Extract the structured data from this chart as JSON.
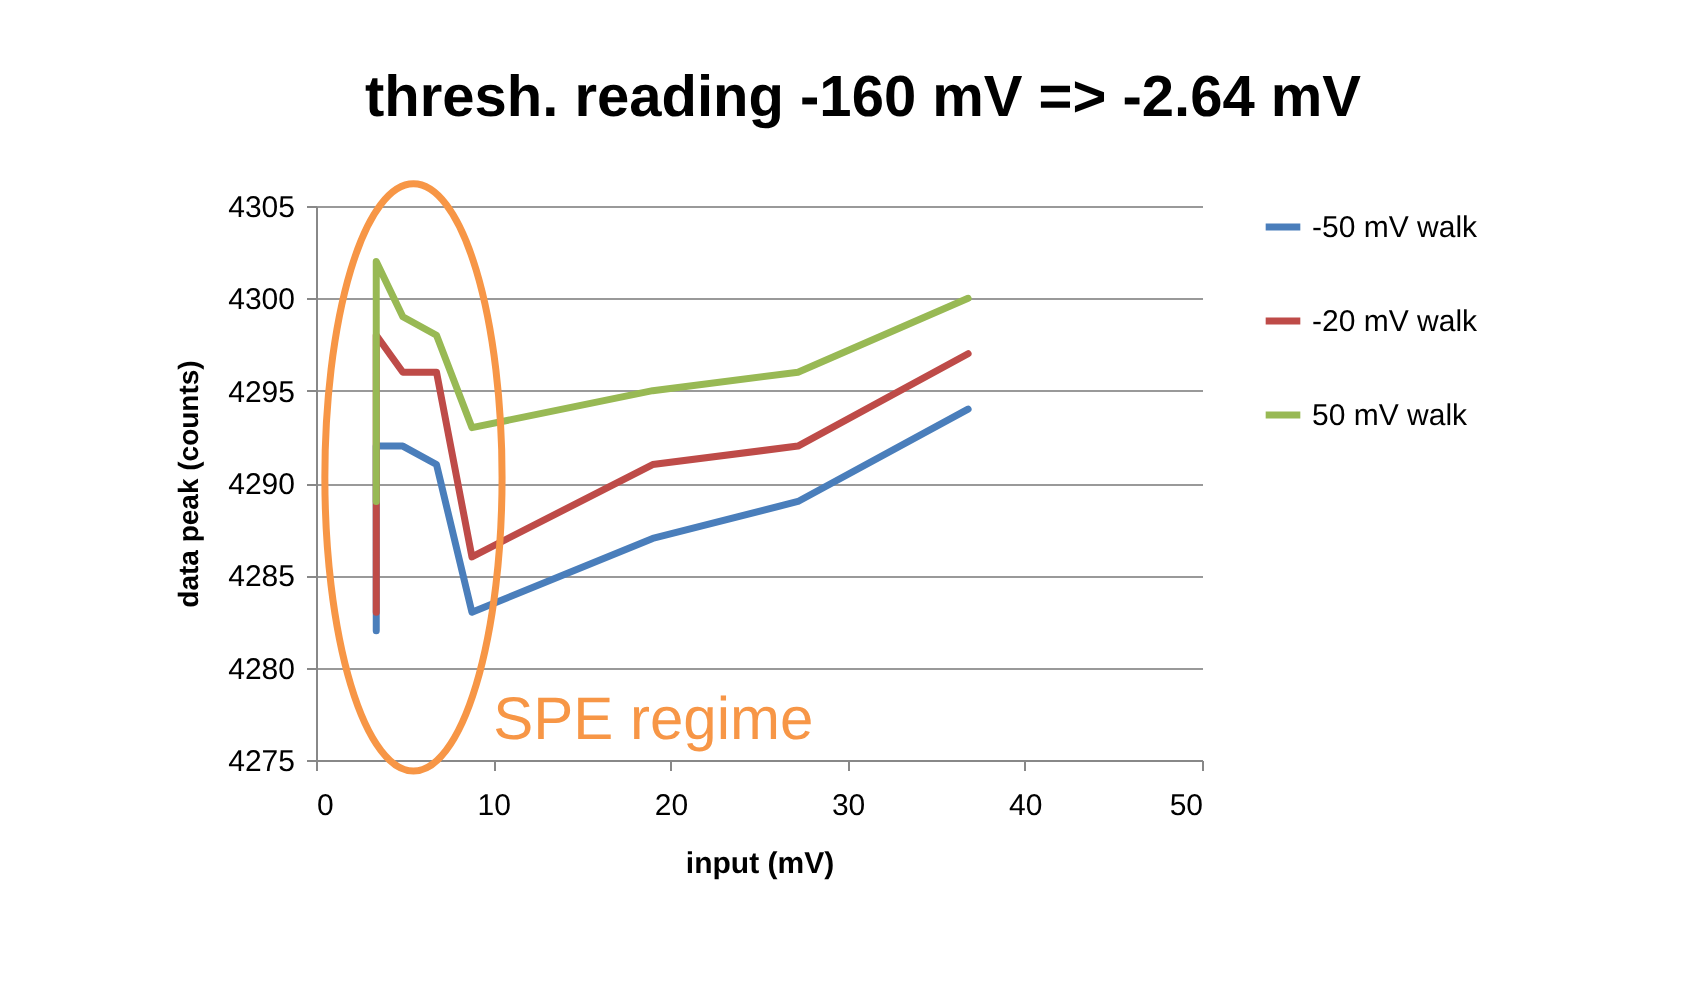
{
  "chart_data": {
    "type": "line",
    "title": "thresh. reading -160 mV => -2.64 mV",
    "xlabel": "input (mV)",
    "ylabel": "data peak (counts)",
    "x": [
      3.4,
      3.4,
      4.9,
      6.8,
      8.8,
      19,
      27.2,
      36.8
    ],
    "series": [
      {
        "name": "-50 mV walk",
        "color": "#4a7ebb",
        "values": [
          4282,
          4292,
          4292,
          4291,
          4283,
          4287,
          4289,
          4294
        ]
      },
      {
        "name": "-20 mV walk",
        "color": "#be4b48",
        "values": [
          4283,
          4298,
          4296,
          4296,
          4286,
          4291,
          4292,
          4297
        ]
      },
      {
        "name": "50 mV walk",
        "color": "#98b954",
        "values": [
          4289,
          4302,
          4299,
          4298,
          4293,
          4295,
          4296,
          4300
        ]
      }
    ],
    "xlim": [
      0,
      50
    ],
    "xticks": [
      0,
      10,
      20,
      30,
      40,
      50
    ],
    "ylim": [
      4275,
      4305
    ],
    "yticks": [
      4275,
      4280,
      4285,
      4290,
      4295,
      4300,
      4305
    ],
    "grid": "y",
    "legend": "right",
    "marker": "none",
    "line_style": "solid",
    "annotations": [
      "SPE regime"
    ]
  }
}
